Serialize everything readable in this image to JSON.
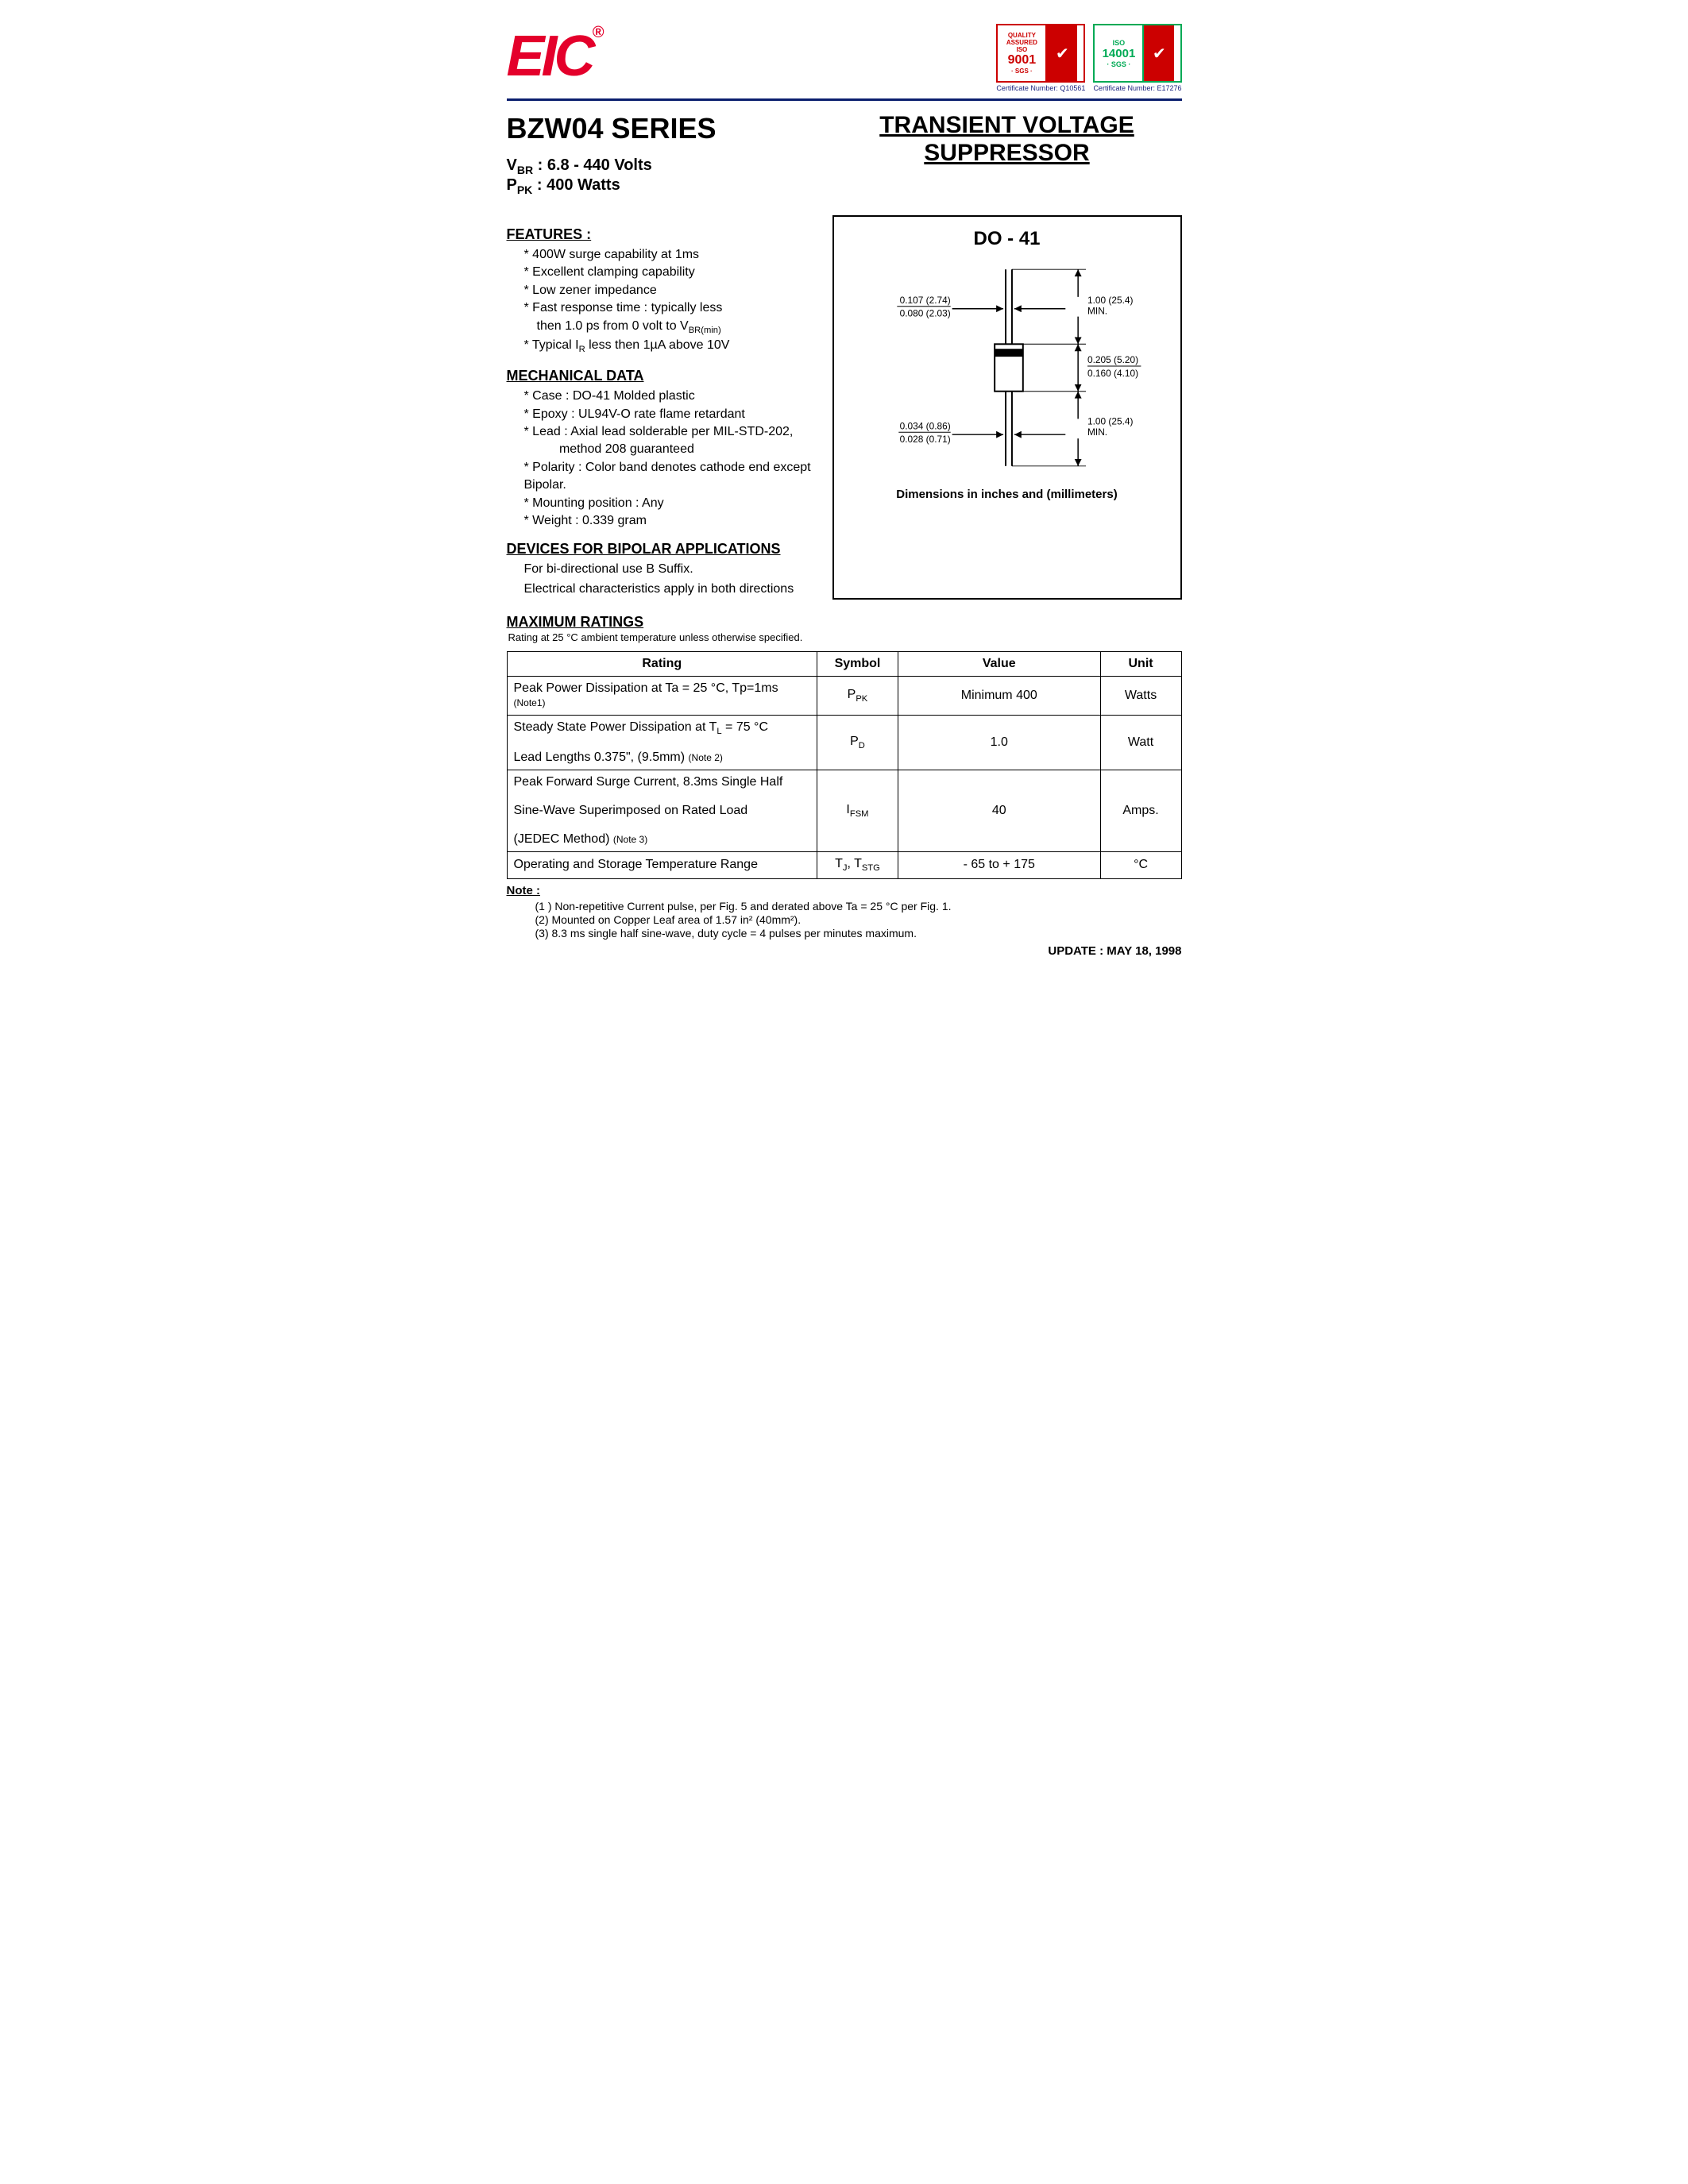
{
  "logo": {
    "text": "EIC",
    "reg": "®",
    "color": "#e4002b"
  },
  "certs": [
    {
      "iso_label": "ISO",
      "iso_num": "9001",
      "cert_text": "Certificate Number: Q10561",
      "class": "cert-iso"
    },
    {
      "iso_label": "ISO",
      "iso_num": "14001",
      "cert_text": "Certificate Number: E17276",
      "class": "cert-env"
    }
  ],
  "series_title": "BZW04 SERIES",
  "product_title_l1": "TRANSIENT VOLTAGE",
  "product_title_l2": "SUPPRESSOR",
  "specs": {
    "vbr_label_pre": "V",
    "vbr_label_sub": "BR",
    "vbr_value": " : 6.8 - 440 Volts",
    "ppk_label_pre": "P",
    "ppk_label_sub": "PK",
    "ppk_value": " : 400 Watts"
  },
  "features": {
    "heading": "FEATURES :",
    "items": [
      "400W surge capability at 1ms",
      "Excellent clamping capability",
      "Low zener impedance"
    ],
    "item_fast_l1": "Fast response time : typically less",
    "item_fast_l2_pre": "then 1.0 ps from 0 volt to V",
    "item_fast_l2_sub": "BR(min)",
    "item_ir_pre": "Typical I",
    "item_ir_sub": "R",
    "item_ir_post": " less then 1µA above 10V"
  },
  "mechanical": {
    "heading": "MECHANICAL DATA",
    "items": [
      "Case : DO-41 Molded plastic",
      "Epoxy : UL94V-O rate flame retardant"
    ],
    "lead_l1": "Lead : Axial lead solderable per MIL-STD-202,",
    "lead_l2": "method 208 guaranteed",
    "items2": [
      "Polarity : Color band denotes cathode end except Bipolar.",
      "Mounting position : Any",
      "Weight :  0.339 gram"
    ]
  },
  "bipolar": {
    "heading": "DEVICES FOR BIPOLAR APPLICATIONS",
    "l1": "For bi-directional use B Suffix.",
    "l2": "Electrical characteristics apply in both directions"
  },
  "diagram": {
    "package_name": "DO - 41",
    "dim_lead_w_in": "0.107 (2.74)",
    "dim_lead_w_mm": "0.080 (2.03)",
    "dim_top_len": "1.00 (25.4)",
    "dim_top_min": "MIN.",
    "dim_body_h_in": "0.205 (5.20)",
    "dim_body_h_mm": "0.160 (4.10)",
    "dim_lead_d_in": "0.034 (0.86)",
    "dim_lead_d_mm": "0.028 (0.71)",
    "dim_bot_len": "1.00 (25.4)",
    "dim_bot_min": "MIN.",
    "caption": "Dimensions in inches and (millimeters)"
  },
  "ratings": {
    "heading": "MAXIMUM RATINGS",
    "subnote": "Rating at 25 °C ambient temperature unless otherwise specified.",
    "columns": [
      "Rating",
      "Symbol",
      "Value",
      "Unit"
    ],
    "rows": [
      {
        "rating_html": "Peak Power Dissipation at Ta = 25 °C, Tp=1ms <span class='small-note'>(Note1)</span>",
        "symbol_html": "P<span class='subsc'>PK</span>",
        "value": "Minimum 400",
        "unit": "Watts"
      },
      {
        "rating_html": "Steady State Power Dissipation at T<span class='subsc'>L</span> = 75 °C<br><br>Lead Lengths 0.375\", (9.5mm) <span class='small-note'>(Note 2)</span>",
        "symbol_html": "P<span class='subsc'>D</span>",
        "value": "1.0",
        "unit": "Watt"
      },
      {
        "rating_html": "Peak Forward Surge Current, 8.3ms Single Half<br><br>Sine-Wave Superimposed on Rated Load<br><br>(JEDEC Method) <span class='small-note'>(Note 3)</span>",
        "symbol_html": "I<span class='subsc'>FSM</span>",
        "value": "40",
        "unit": "Amps."
      },
      {
        "rating_html": "Operating and Storage Temperature Range",
        "symbol_html": "T<span class='subsc'>J</span>, T<span class='subsc'>STG</span>",
        "value": "- 65 to + 175",
        "unit": "°C"
      }
    ]
  },
  "notes": {
    "heading": "Note :",
    "items": [
      "Non-repetitive Current pulse, per Fig. 5 and derated above Ta = 25 °C per Fig. 1.",
      "Mounted on Copper Leaf area of 1.57 in² (40mm²).",
      "8.3 ms single half sine-wave, duty cycle = 4 pulses per minutes maximum."
    ]
  },
  "update": "UPDATE : MAY 18, 1998",
  "colors": {
    "brand_red": "#e4002b",
    "divider_blue": "#0a1e6e",
    "cert_green": "#00aa55",
    "cert_red": "#cc0000"
  }
}
